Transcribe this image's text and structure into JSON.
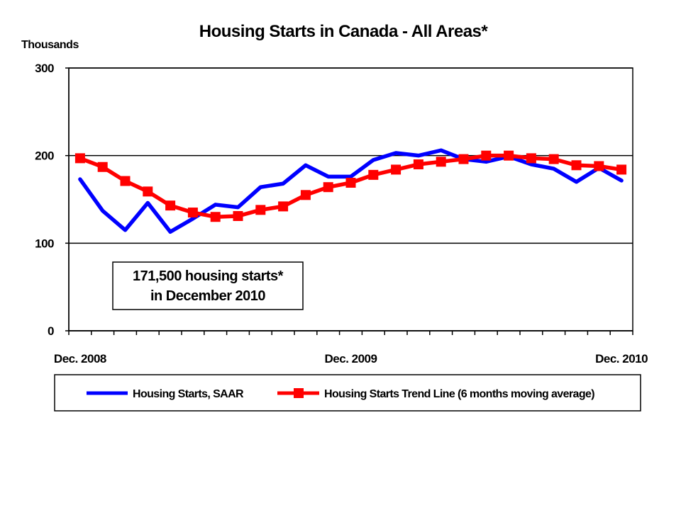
{
  "chart_data": {
    "type": "line",
    "title": "Housing Starts in Canada - All Areas*",
    "ylabel": "Thousands",
    "ylim": [
      0,
      300
    ],
    "yticks": [
      0,
      100,
      200,
      300
    ],
    "grid": "horizontal",
    "legend_position": "bottom",
    "x_labels": [
      "Dec. 2008",
      "Dec. 2009",
      "Dec. 2010"
    ],
    "x": [
      "Dec 2008",
      "Jan 2009",
      "Feb 2009",
      "Mar 2009",
      "Apr 2009",
      "May 2009",
      "Jun 2009",
      "Jul 2009",
      "Aug 2009",
      "Sep 2009",
      "Oct 2009",
      "Nov 2009",
      "Dec 2009",
      "Jan 2010",
      "Feb 2010",
      "Mar 2010",
      "Apr 2010",
      "May 2010",
      "Jun 2010",
      "Jul 2010",
      "Aug 2010",
      "Sep 2010",
      "Oct 2010",
      "Nov 2010",
      "Dec 2010"
    ],
    "series": [
      {
        "name": "Housing Starts, SAAR",
        "color": "#0000ff",
        "marker": "none",
        "values": [
          173,
          137,
          115,
          146,
          113,
          128,
          144,
          141,
          164,
          168,
          189,
          176,
          176,
          195,
          203,
          200,
          206,
          196,
          193,
          199,
          190,
          185,
          170,
          186,
          171.5
        ]
      },
      {
        "name": "Housing Starts Trend Line (6 months moving average)",
        "color": "#ff0000",
        "marker": "square",
        "values": [
          197,
          187,
          171,
          159,
          143,
          135,
          130,
          131,
          138,
          142,
          155,
          164,
          169,
          178,
          184,
          190,
          193,
          196,
          200,
          200,
          197,
          196,
          189,
          188,
          184
        ]
      }
    ],
    "annotation": {
      "line1": "171,500 housing starts*",
      "line2": "in December 2010"
    }
  }
}
